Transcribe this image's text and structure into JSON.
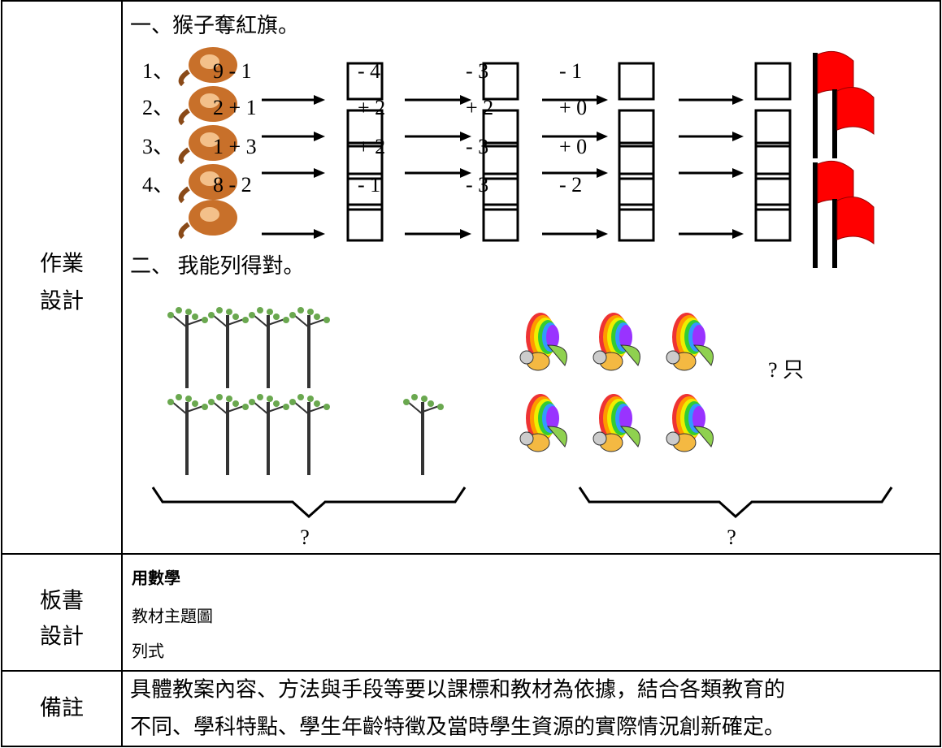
{
  "homework": {
    "label": [
      "作業",
      "設計"
    ],
    "section1": {
      "title": "一、猴子奪紅旗。",
      "rows": [
        {
          "index": "1、",
          "start": "9 - 1",
          "steps": [
            "- 4",
            "- 3",
            "- 1"
          ]
        },
        {
          "index": "2、",
          "start": "2 + 1",
          "steps": [
            "+ 2",
            "+ 2",
            "+ 0"
          ]
        },
        {
          "index": "3、",
          "start": "1 + 3",
          "steps": [
            "+ 2",
            "- 3",
            "+ 0"
          ]
        },
        {
          "index": "4、",
          "start": "8 - 2",
          "steps": [
            "- 1",
            "- 3",
            "- 2"
          ]
        }
      ]
    },
    "section2": {
      "title": "二、 我能列得對。",
      "unit": "? 只",
      "questions": [
        "?",
        "?"
      ]
    }
  },
  "board": {
    "label": [
      "板書",
      "設計"
    ],
    "lines": [
      "用數學",
      "教材主題圖",
      "列式"
    ]
  },
  "remarks": {
    "label": "備註",
    "lines": [
      "具體教案內容、方法與手段等要以課標和教材為依據，結合各類教育的",
      "不同、學科特點、學生年齡特徵及當時學生資源的實際情況創新確定。"
    ]
  }
}
